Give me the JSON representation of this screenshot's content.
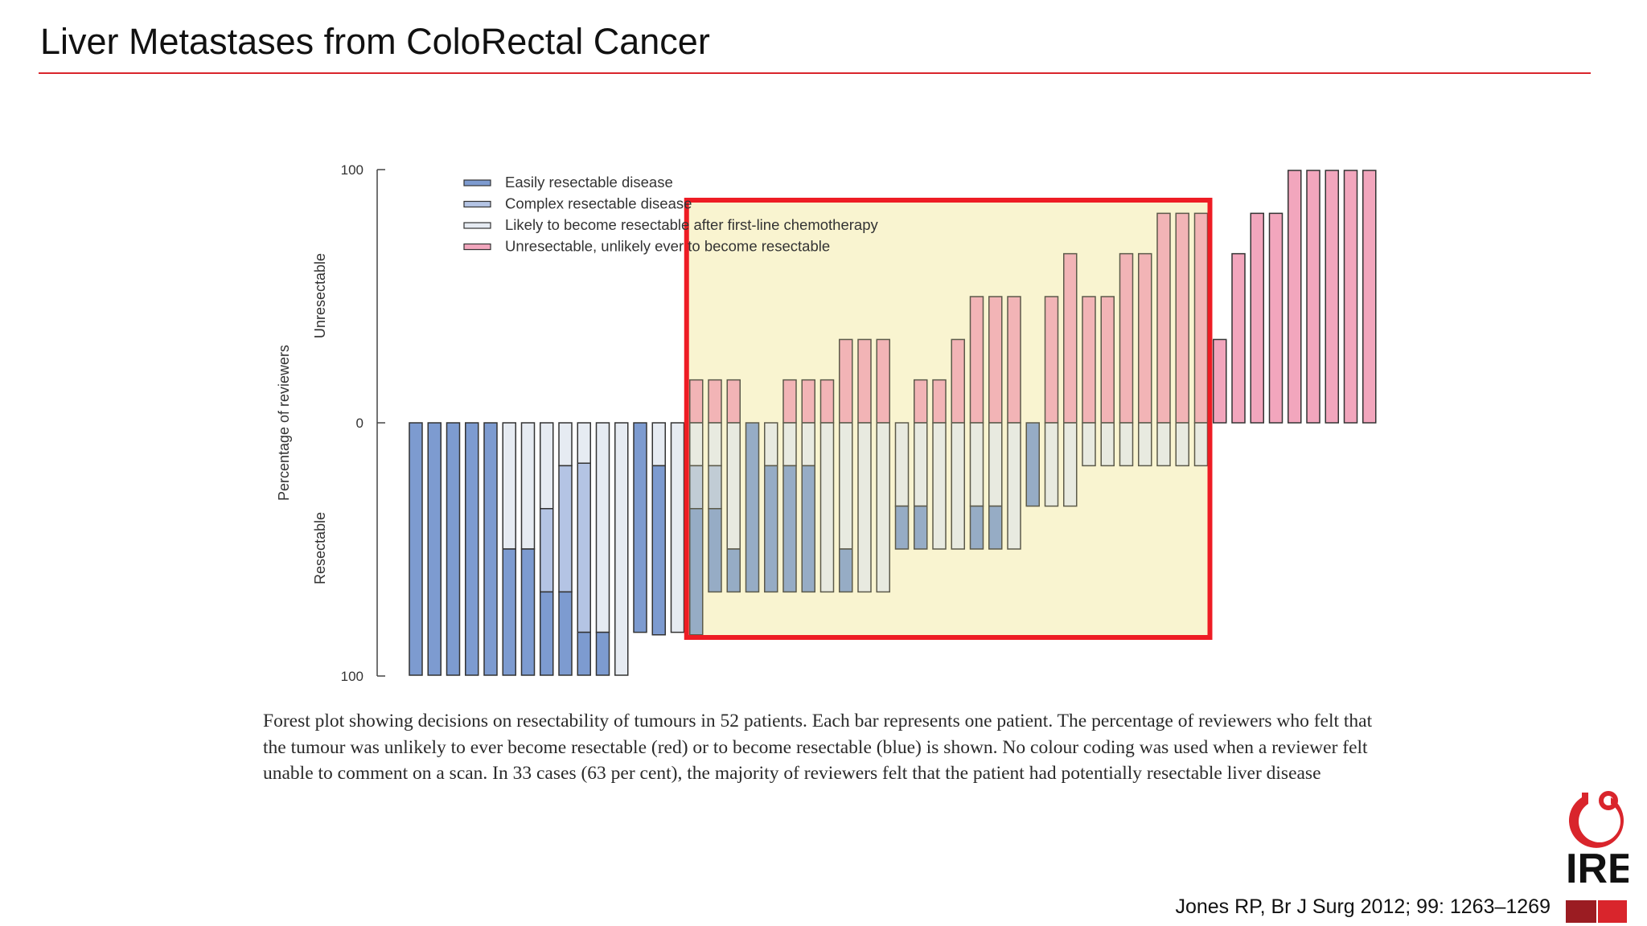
{
  "slide": {
    "title": "Liver Metastases from ColoRectal Cancer",
    "caption": "Forest plot showing decisions on resectability of tumours in 52 patients. Each bar represents one patient. The percentage of reviewers who felt that the tumour was unlikely to ever become resectable (red) or to become resectable (blue) is shown. No colour coding was used when a reviewer felt unable to comment on a scan. In 33 cases (63 per cent), the majority of reviewers felt that the patient had potentially resectable liver disease",
    "citation": "Jones RP, Br J Surg 2012; 99: 1263–1269",
    "logo_text": "IRE",
    "colors": {
      "accent_red": "#d9252c",
      "highlight_fill": "#fbf8de",
      "highlight_border": "#ee1c24"
    }
  },
  "chart_data": {
    "type": "bar",
    "stacking": "diverging",
    "ylabel": "Percentage of reviewers",
    "upper_label": "Unresectable",
    "lower_label": "Resectable",
    "y_ticks": [
      "100",
      "0",
      "100"
    ],
    "ylim": [
      -100,
      100
    ],
    "legend_position": "top-left",
    "series": [
      {
        "key": "easy",
        "name": "Easily resectable disease",
        "color": "#7d9bd0"
      },
      {
        "key": "complex",
        "name": "Complex resectable disease",
        "color": "#b4c4e4"
      },
      {
        "key": "likely",
        "name": "Likely to become resectable after first-line chemotherapy",
        "color": "#e6ebf2"
      },
      {
        "key": "unres",
        "name": "Unresectable, unlikely ever to become resectable",
        "color": "#f2a6bd"
      }
    ],
    "patients": [
      {
        "easy": 100,
        "complex": 0,
        "likely": 0,
        "unres": 0
      },
      {
        "easy": 100,
        "complex": 0,
        "likely": 0,
        "unres": 0
      },
      {
        "easy": 100,
        "complex": 0,
        "likely": 0,
        "unres": 0
      },
      {
        "easy": 100,
        "complex": 0,
        "likely": 0,
        "unres": 0
      },
      {
        "easy": 100,
        "complex": 0,
        "likely": 0,
        "unres": 0
      },
      {
        "easy": 50,
        "complex": 0,
        "likely": 50,
        "unres": 0
      },
      {
        "easy": 50,
        "complex": 0,
        "likely": 50,
        "unres": 0
      },
      {
        "easy": 33,
        "complex": 33,
        "likely": 34,
        "unres": 0
      },
      {
        "easy": 33,
        "complex": 50,
        "likely": 17,
        "unres": 0
      },
      {
        "easy": 17,
        "complex": 67,
        "likely": 16,
        "unres": 0
      },
      {
        "easy": 17,
        "complex": 0,
        "likely": 83,
        "unres": 0
      },
      {
        "easy": 0,
        "complex": 0,
        "likely": 100,
        "unres": 0
      },
      {
        "easy": 83,
        "complex": 0,
        "likely": 0,
        "unres": 0
      },
      {
        "easy": 67,
        "complex": 0,
        "likely": 17,
        "unres": 0
      },
      {
        "easy": 0,
        "complex": 0,
        "likely": 83,
        "unres": 0
      },
      {
        "easy": 50,
        "complex": 17,
        "likely": 17,
        "unres": 17
      },
      {
        "easy": 33,
        "complex": 17,
        "likely": 17,
        "unres": 17
      },
      {
        "easy": 17,
        "complex": 0,
        "likely": 50,
        "unres": 17
      },
      {
        "easy": 67,
        "complex": 0,
        "likely": 0,
        "unres": 0
      },
      {
        "easy": 50,
        "complex": 0,
        "likely": 17,
        "unres": 0
      },
      {
        "easy": 50,
        "complex": 0,
        "likely": 17,
        "unres": 17
      },
      {
        "easy": 50,
        "complex": 0,
        "likely": 17,
        "unres": 17
      },
      {
        "easy": 0,
        "complex": 0,
        "likely": 67,
        "unres": 17
      },
      {
        "easy": 17,
        "complex": 0,
        "likely": 50,
        "unres": 33
      },
      {
        "easy": 0,
        "complex": 0,
        "likely": 67,
        "unres": 33
      },
      {
        "easy": 0,
        "complex": 0,
        "likely": 67,
        "unres": 33
      },
      {
        "easy": 17,
        "complex": 0,
        "likely": 33,
        "unres": 0
      },
      {
        "easy": 17,
        "complex": 0,
        "likely": 33,
        "unres": 17
      },
      {
        "easy": 0,
        "complex": 0,
        "likely": 50,
        "unres": 17
      },
      {
        "easy": 0,
        "complex": 0,
        "likely": 50,
        "unres": 33
      },
      {
        "easy": 17,
        "complex": 0,
        "likely": 33,
        "unres": 50
      },
      {
        "easy": 17,
        "complex": 0,
        "likely": 33,
        "unres": 50
      },
      {
        "easy": 0,
        "complex": 0,
        "likely": 50,
        "unres": 50
      },
      {
        "easy": 33,
        "complex": 0,
        "likely": 0,
        "unres": 0
      },
      {
        "easy": 0,
        "complex": 0,
        "likely": 33,
        "unres": 50
      },
      {
        "easy": 0,
        "complex": 0,
        "likely": 33,
        "unres": 67
      },
      {
        "easy": 0,
        "complex": 0,
        "likely": 17,
        "unres": 50
      },
      {
        "easy": 0,
        "complex": 0,
        "likely": 17,
        "unres": 50
      },
      {
        "easy": 0,
        "complex": 0,
        "likely": 17,
        "unres": 67
      },
      {
        "easy": 0,
        "complex": 0,
        "likely": 17,
        "unres": 67
      },
      {
        "easy": 0,
        "complex": 0,
        "likely": 17,
        "unres": 83
      },
      {
        "easy": 0,
        "complex": 0,
        "likely": 17,
        "unres": 83
      },
      {
        "easy": 0,
        "complex": 0,
        "likely": 17,
        "unres": 83
      },
      {
        "easy": 0,
        "complex": 0,
        "likely": 0,
        "unres": 33
      },
      {
        "easy": 0,
        "complex": 0,
        "likely": 0,
        "unres": 67
      },
      {
        "easy": 0,
        "complex": 0,
        "likely": 0,
        "unres": 83
      },
      {
        "easy": 0,
        "complex": 0,
        "likely": 0,
        "unres": 83
      },
      {
        "easy": 0,
        "complex": 0,
        "likely": 0,
        "unres": 100
      },
      {
        "easy": 0,
        "complex": 0,
        "likely": 0,
        "unres": 100
      },
      {
        "easy": 0,
        "complex": 0,
        "likely": 0,
        "unres": 100
      },
      {
        "easy": 0,
        "complex": 0,
        "likely": 0,
        "unres": 100
      },
      {
        "easy": 0,
        "complex": 0,
        "likely": 0,
        "unres": 100
      }
    ],
    "highlight_range": [
      15,
      42
    ]
  }
}
